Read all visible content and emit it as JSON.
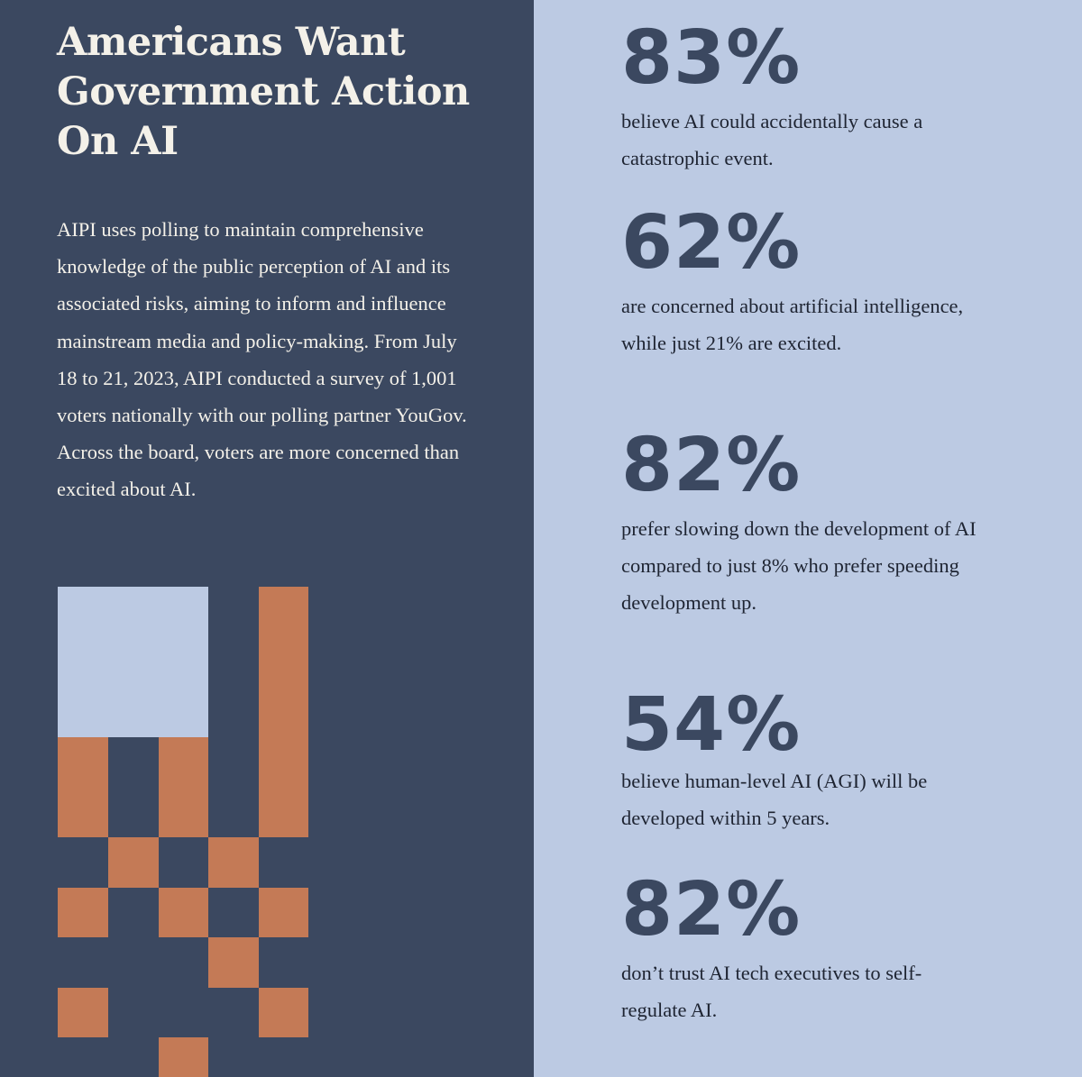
{
  "colors": {
    "left_background": "#3b4860",
    "right_background": "#bccae3",
    "headline_text": "#f4f1e9",
    "body_text_light": "#f4f1e9",
    "stat_number": "#3b4860",
    "stat_text": "#1e2432",
    "block_light": "#bccae3",
    "block_orange": "#c47a56"
  },
  "hero": {
    "title_lines": [
      "Americans Want",
      "Government Action",
      "On AI"
    ],
    "intro": "AIPI uses polling to maintain comprehensive knowledge of the public perception of AI and its associated risks, aiming to inform and influence mainstream media and policy-making. From July 18 to 21, 2023, AIPI conducted a survey of 1,001 voters nationally with our polling partner YouGov. Across the board, voters are more concerned than excited about AI."
  },
  "stats": [
    {
      "value": "83%",
      "description": "believe AI could accidentally cause a catastrophic event."
    },
    {
      "value": "62%",
      "description": "are concerned about artificial intelligence, while just 21% are excited."
    },
    {
      "value": "82%",
      "description": "prefer slowing down the development of AI compared to just 8% who prefer speeding development up."
    },
    {
      "value": "54%",
      "description": "believe human-level AI (AGI) will be developed within 5 years."
    },
    {
      "value": "82%",
      "description": "don’t trust AI tech executives to self-regulate AI."
    }
  ]
}
